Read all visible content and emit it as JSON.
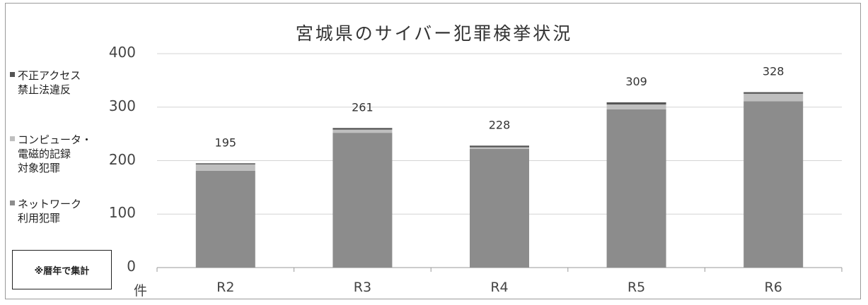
{
  "chart_data": {
    "type": "bar",
    "stacked": true,
    "title": "宮城県のサイバー犯罪検挙状況",
    "categories": [
      "R2",
      "R3",
      "R4",
      "R5",
      "R6"
    ],
    "series": [
      {
        "name": "ネットワーク利用犯罪",
        "values": [
          181,
          252,
          222,
          296,
          311
        ],
        "color": "#8c8c8c"
      },
      {
        "name": "コンピュータ・電磁的記録対象犯罪",
        "values": [
          12,
          6,
          3,
          9,
          14
        ],
        "color": "#bfbfbf"
      },
      {
        "name": "不正アクセス禁止法違反",
        "values": [
          2,
          3,
          3,
          4,
          3
        ],
        "color": "#545454"
      }
    ],
    "totals": [
      195,
      261,
      228,
      309,
      328
    ],
    "yticks": [
      0,
      100,
      200,
      300,
      400
    ],
    "ylim": [
      0,
      400
    ],
    "ylabel": "件",
    "grid": true,
    "legend": {
      "position": "left",
      "entries": [
        {
          "lines": [
            "不正アクセス",
            "禁止法違反"
          ],
          "color": "#545454"
        },
        {
          "lines": [
            "コンピュータ・",
            "電磁的記録",
            "対象犯罪"
          ],
          "color": "#bfbfbf"
        },
        {
          "lines": [
            "ネットワーク",
            "利用犯罪"
          ],
          "color": "#8c8c8c"
        }
      ]
    }
  },
  "note": "※暦年で集計"
}
